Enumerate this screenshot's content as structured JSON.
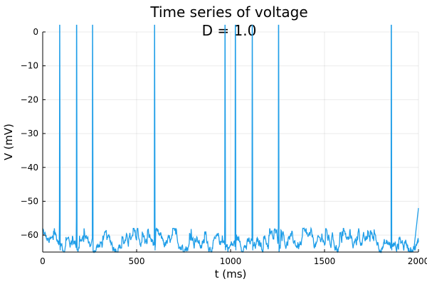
{
  "chart_data": {
    "type": "line",
    "title": "Time series of voltage",
    "subtitle": "D = 1.0",
    "xlabel": "t (ms)",
    "ylabel": "V (mV)",
    "xlim": [
      0,
      2000
    ],
    "ylim": [
      -65,
      0
    ],
    "x_ticks": [
      0,
      500,
      1000,
      1500,
      2000
    ],
    "y_ticks": [
      0,
      -10,
      -20,
      -30,
      -40,
      -50,
      -60
    ],
    "grid": true,
    "legend": "none",
    "series_color": "#1f9ee8",
    "series": [
      {
        "baseline_mV": -63,
        "noise_range_mV": [
          -65,
          -58
        ],
        "spike_times_ms": [
          90,
          180,
          265,
          595,
          970,
          1025,
          1115,
          1255,
          1855
        ],
        "spike_peak_mV": 0,
        "start_mV": -57,
        "end_mV": -52
      }
    ]
  }
}
